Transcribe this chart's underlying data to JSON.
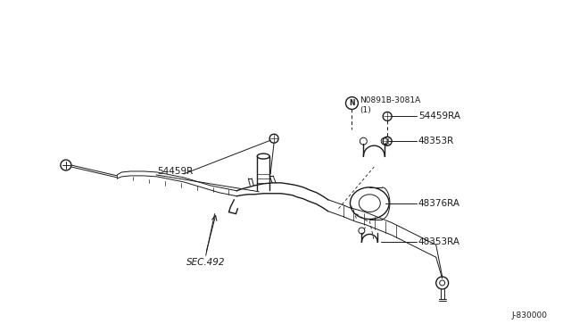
{
  "bg_color": "#ffffff",
  "line_color": "#1a1a1a",
  "fig_width": 6.4,
  "fig_height": 3.72,
  "dpi": 100,
  "labels": {
    "N_circle": "N",
    "N_part": "N0891B-3081A",
    "N_qty": "(1)",
    "part1": "54459R",
    "part2": "54459RA",
    "part3": "48353R",
    "part4": "48376RA",
    "part5": "48353RA",
    "sec": "SEC.492",
    "diagram_num": "J-830000"
  }
}
